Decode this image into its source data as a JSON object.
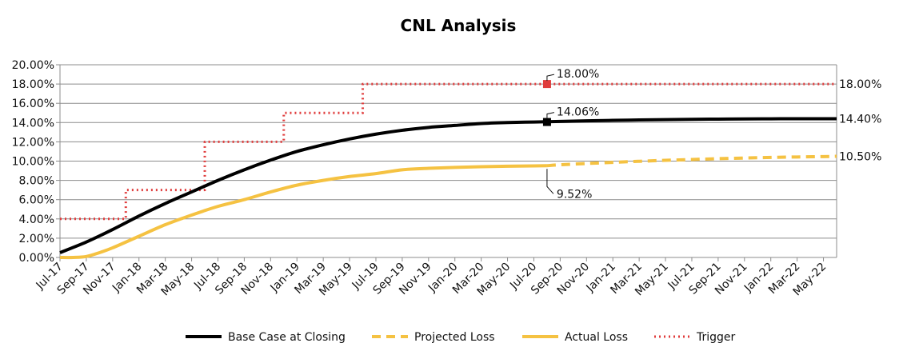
{
  "chart_data": {
    "type": "line",
    "title": "CNL Analysis",
    "x_tick_labels": [
      "Jul-17",
      "Sep-17",
      "Nov-17",
      "Jan-18",
      "Mar-18",
      "May-18",
      "Jul-18",
      "Sep-18",
      "Nov-18",
      "Jan-19",
      "Mar-19",
      "May-19",
      "Jul-19",
      "Sep-19",
      "Nov-19",
      "Jan-20",
      "Mar-20",
      "May-20",
      "Jul-20",
      "Sep-20",
      "Nov-20",
      "Jan-21",
      "Mar-21",
      "May-21",
      "Jul-21",
      "Sep-21",
      "Nov-21",
      "Jan-22",
      "Mar-22",
      "May-22"
    ],
    "y_tick_labels": [
      "0.00%",
      "2.00%",
      "4.00%",
      "6.00%",
      "8.00%",
      "10.00%",
      "12.00%",
      "14.00%",
      "16.00%",
      "18.00%",
      "20.00%"
    ],
    "ylim": [
      0,
      20
    ],
    "grid": true,
    "legend_position": "bottom",
    "series": [
      {
        "name": "Base Case at Closing",
        "color": "#000000",
        "style": "solid",
        "x": [
          "Jul-17",
          "Sep-17",
          "Nov-17",
          "Jan-18",
          "Mar-18",
          "May-18",
          "Jul-18",
          "Sep-18",
          "Nov-18",
          "Jan-19",
          "Mar-19",
          "May-19",
          "Jul-19",
          "Sep-19",
          "Nov-19",
          "Jan-20",
          "Mar-20",
          "May-20",
          "Jul-20",
          "Sep-20",
          "Nov-20",
          "Jan-21",
          "Mar-21",
          "May-21",
          "Jul-21",
          "Sep-21",
          "Nov-21",
          "Jan-22",
          "Mar-22",
          "May-22",
          "Jun-22"
        ],
        "values": [
          0.5,
          1.6,
          2.9,
          4.3,
          5.6,
          6.8,
          8.0,
          9.1,
          10.1,
          11.0,
          11.7,
          12.3,
          12.8,
          13.2,
          13.5,
          13.7,
          13.9,
          14.0,
          14.06,
          14.12,
          14.18,
          14.23,
          14.27,
          14.31,
          14.34,
          14.36,
          14.38,
          14.39,
          14.4,
          14.4,
          14.4
        ]
      },
      {
        "name": "Actual Loss",
        "color": "#F5C242",
        "style": "solid",
        "x": [
          "Jul-17",
          "Aug-17",
          "Sep-17",
          "Oct-17",
          "Nov-17",
          "Jan-18",
          "Mar-18",
          "May-18",
          "Jul-18",
          "Sep-18",
          "Nov-18",
          "Jan-19",
          "Mar-19",
          "May-19",
          "Jul-19",
          "Sep-19",
          "Nov-19",
          "Jan-20",
          "Mar-20",
          "May-20",
          "Jul-20",
          "Aug-20"
        ],
        "values": [
          0,
          0,
          0.1,
          0.5,
          1.0,
          2.2,
          3.4,
          4.4,
          5.3,
          6.0,
          6.8,
          7.5,
          8.0,
          8.4,
          8.7,
          9.1,
          9.25,
          9.35,
          9.42,
          9.47,
          9.5,
          9.52
        ]
      },
      {
        "name": "Projected Loss",
        "color": "#F5C242",
        "style": "dashed",
        "x": [
          "Aug-20",
          "Sep-20",
          "Nov-20",
          "Jan-21",
          "Mar-21",
          "May-21",
          "Jul-21",
          "Sep-21",
          "Nov-21",
          "Jan-22",
          "Mar-22",
          "May-22",
          "Jun-22"
        ],
        "values": [
          9.52,
          9.62,
          9.75,
          9.87,
          9.98,
          10.08,
          10.17,
          10.25,
          10.32,
          10.38,
          10.43,
          10.47,
          10.5
        ]
      },
      {
        "name": "Trigger",
        "color": "#E03C3C",
        "style": "dotted",
        "steps": [
          {
            "from": "Jul-17",
            "to": "Dec-17",
            "value": 4
          },
          {
            "from": "Dec-17",
            "to": "Jun-18",
            "value": 7
          },
          {
            "from": "Jun-18",
            "to": "Dec-18",
            "value": 12
          },
          {
            "from": "Dec-18",
            "to": "Jun-19",
            "value": 15
          },
          {
            "from": "Jun-19",
            "to": "Jun-22",
            "value": 18
          }
        ]
      }
    ],
    "point_annotations": [
      {
        "label": "18.00%",
        "x": "Aug-20",
        "value": 18.0,
        "color": "#E03C3C"
      },
      {
        "label": "14.06%",
        "x": "Aug-20",
        "value": 14.06,
        "color": "#000000"
      },
      {
        "label": "9.52%",
        "x": "Aug-20",
        "value": 9.52,
        "color": "#F5C242"
      }
    ],
    "end_labels": [
      {
        "label": "18.00%",
        "value": 18.0
      },
      {
        "label": "14.40%",
        "value": 14.4
      },
      {
        "label": "10.50%",
        "value": 10.5
      }
    ],
    "legend": [
      "Base Case at Closing",
      "Projected Loss",
      "Actual Loss",
      "Trigger"
    ]
  }
}
